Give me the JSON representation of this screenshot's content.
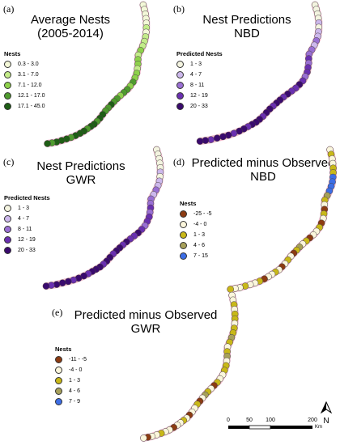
{
  "panels": [
    {
      "id": "a",
      "label": "(a)",
      "title": [
        "Average Nests",
        "(2005-2014)"
      ],
      "legend_title": "Nests",
      "legend": [
        {
          "label": "0.3 - 3.0",
          "color": "#f4f8d8"
        },
        {
          "label": "3.1 - 7.0",
          "color": "#c4ec8a"
        },
        {
          "label": "7.1 - 12.0",
          "color": "#8ed14b"
        },
        {
          "label": "12.1 - 17.0",
          "color": "#4f9b2e"
        },
        {
          "label": "17.1 - 45.0",
          "color": "#1f5e15"
        }
      ],
      "sequence": [
        0,
        0,
        0,
        0,
        0,
        1,
        0,
        1,
        1,
        1,
        2,
        1,
        2,
        2,
        1,
        2,
        2,
        3,
        2,
        3,
        3,
        2,
        3,
        3,
        4,
        3,
        3,
        4,
        4,
        3,
        4,
        4,
        3,
        4,
        4,
        4,
        3,
        4,
        4,
        4,
        3,
        4
      ]
    },
    {
      "id": "b",
      "label": "(b)",
      "title": [
        "Nest Predictions",
        "NBD"
      ],
      "legend_title": "Predicted Nests",
      "legend": [
        {
          "label": "1 - 3",
          "color": "#f4f4e0"
        },
        {
          "label": "4 - 7",
          "color": "#cdb8ec"
        },
        {
          "label": "8 - 11",
          "color": "#9a6fd3"
        },
        {
          "label": "12 - 19",
          "color": "#6a2fb0"
        },
        {
          "label": "20 - 33",
          "color": "#3a0a6e"
        }
      ],
      "sequence": [
        0,
        0,
        0,
        0,
        1,
        0,
        1,
        1,
        2,
        1,
        2,
        2,
        3,
        2,
        3,
        3,
        2,
        3,
        4,
        3,
        3,
        4,
        3,
        4,
        4,
        3,
        4,
        4,
        3,
        4,
        4,
        4,
        3,
        4,
        4,
        3,
        4,
        4,
        4,
        3,
        4,
        4
      ]
    },
    {
      "id": "c",
      "label": "(c)",
      "title": [
        "Nest Predictions",
        "GWR"
      ],
      "legend_title": "Predicted Nests",
      "legend": [
        {
          "label": "1 - 3",
          "color": "#f4f4e0"
        },
        {
          "label": "4 - 7",
          "color": "#cdb8ec"
        },
        {
          "label": "8 - 11",
          "color": "#9a6fd3"
        },
        {
          "label": "12 - 19",
          "color": "#6a2fb0"
        },
        {
          "label": "20 - 33",
          "color": "#3a0a6e"
        }
      ],
      "sequence": [
        0,
        0,
        0,
        0,
        0,
        1,
        0,
        1,
        1,
        2,
        1,
        2,
        2,
        3,
        2,
        3,
        3,
        2,
        3,
        4,
        3,
        3,
        4,
        3,
        4,
        4,
        3,
        4,
        4,
        3,
        4,
        4,
        4,
        3,
        4,
        4,
        3,
        4,
        4,
        4,
        3,
        4
      ]
    },
    {
      "id": "d",
      "label": "(d)",
      "title": [
        "Predicted minus Observed",
        "NBD"
      ],
      "legend_title": "Nests",
      "legend": [
        {
          "label": "-25 - -5",
          "color": "#8c3b12"
        },
        {
          "label": "-4 - 0",
          "color": "#fbf6dc"
        },
        {
          "label": "1 - 3",
          "color": "#c9b818"
        },
        {
          "label": "4 - 6",
          "color": "#a7a05a"
        },
        {
          "label": "7 - 15",
          "color": "#3d6ee6"
        }
      ],
      "sequence": [
        1,
        2,
        1,
        1,
        2,
        2,
        4,
        4,
        4,
        4,
        3,
        2,
        1,
        0,
        2,
        1,
        0,
        2,
        1,
        1,
        0,
        2,
        1,
        3,
        2,
        0,
        1,
        2,
        1,
        0,
        1,
        2,
        1,
        1,
        0,
        2,
        1,
        1,
        2,
        1,
        1,
        2
      ]
    },
    {
      "id": "e",
      "label": "(e)",
      "title": [
        "Predicted minus Observed",
        "GWR"
      ],
      "legend_title": "Nests",
      "legend": [
        {
          "label": "-11 - -5",
          "color": "#8c3b12"
        },
        {
          "label": "-4 - 0",
          "color": "#fbf6dc"
        },
        {
          "label": "1 - 3",
          "color": "#c9b818"
        },
        {
          "label": "4 - 6",
          "color": "#a7a05a"
        },
        {
          "label": "7 - 9",
          "color": "#3d6ee6"
        }
      ],
      "sequence": [
        1,
        1,
        2,
        1,
        2,
        2,
        1,
        2,
        2,
        3,
        2,
        1,
        2,
        3,
        1,
        2,
        2,
        1,
        1,
        2,
        0,
        1,
        2,
        3,
        1,
        0,
        2,
        1,
        1,
        0,
        1,
        2,
        1,
        1,
        0,
        1,
        1,
        2,
        1,
        1,
        0,
        1
      ]
    }
  ],
  "scale": {
    "ticks": [
      "0",
      "50",
      "100",
      "200"
    ],
    "unit": "Km"
  },
  "north": {
    "label": "N"
  },
  "colors": {
    "coast_halo": "#f1b9cd"
  }
}
